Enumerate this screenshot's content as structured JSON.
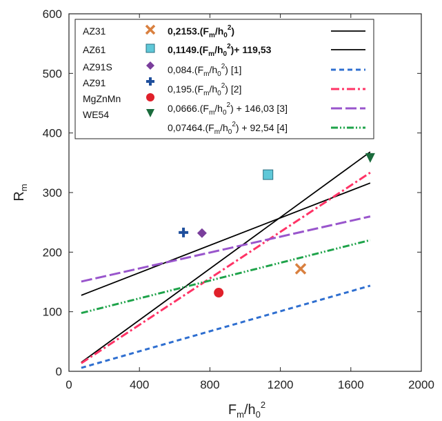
{
  "chart_data": {
    "type": "scatter",
    "xlim": [
      0,
      2000
    ],
    "ylim": [
      0,
      600
    ],
    "x_ticks": [
      "0",
      "400",
      "800",
      "1200",
      "1600",
      "2000"
    ],
    "y_ticks": [
      "0",
      "100",
      "200",
      "300",
      "400",
      "500",
      "600"
    ],
    "xlabel": {
      "main": "F",
      "sub1": "m",
      "mid": "/h",
      "sub2": "0",
      "sup": "2"
    },
    "ylabel": {
      "main": "R",
      "sub": "m"
    },
    "grid": false,
    "legend_position": "top-left",
    "points": [
      {
        "name": "AZ31",
        "x": 1315,
        "y": 172,
        "marker": "x",
        "color": "#d9803f"
      },
      {
        "name": "AZ61",
        "x": 1130,
        "y": 330,
        "marker": "square",
        "color": "#5fc8d8"
      },
      {
        "name": "AZ91S",
        "x": 755,
        "y": 232,
        "marker": "diamond",
        "color": "#7a3e9c"
      },
      {
        "name": "AZ91",
        "x": 650,
        "y": 233,
        "marker": "plus",
        "color": "#1f4f9c"
      },
      {
        "name": "MgZnMn",
        "x": 850,
        "y": 132,
        "marker": "circle",
        "color": "#e0202a"
      },
      {
        "name": "WE54",
        "x": 1710,
        "y": 358,
        "marker": "triangle-down",
        "color": "#1a6b3c"
      }
    ],
    "lines": [
      {
        "formula": "0,2153.(Fm/h0²)",
        "text_pre": "0,2153.(F",
        "text_post": "",
        "bold": true,
        "coef": 0.2153,
        "intercept": 0,
        "x": [
          70,
          1710
        ],
        "color": "#000000",
        "dash": "solid"
      },
      {
        "formula": "0,1149.(Fm/h0²)+ 119,53",
        "text_pre": "0,1149.(F",
        "text_post": "+ 119,53",
        "bold": true,
        "coef": 0.1149,
        "intercept": 119.53,
        "x": [
          70,
          1710
        ],
        "color": "#000000",
        "dash": "solid"
      },
      {
        "formula": "0,084.(Fm/h0²) [1]",
        "text_pre": "0,084.(F",
        "text_post": " [1]",
        "bold": false,
        "coef": 0.084,
        "intercept": 0,
        "x": [
          70,
          1710
        ],
        "color": "#2f6fd0",
        "dash": "dash"
      },
      {
        "formula": "0,195.(Fm/h0²) [2]",
        "text_pre": "0,195.(F",
        "text_post": " [2]",
        "bold": false,
        "coef": 0.195,
        "intercept": 0,
        "x": [
          70,
          1710
        ],
        "color": "#ff3366",
        "dash": "dashdot"
      },
      {
        "formula": "0,0666.(Fm/h0²) + 146,03 [3]",
        "text_pre": "0,0666.(F",
        "text_post": " + 146,03 [3]",
        "bold": false,
        "coef": 0.0666,
        "intercept": 146.03,
        "x": [
          70,
          1710
        ],
        "color": "#9955cc",
        "dash": "longdash"
      },
      {
        "formula": "0,07464.(Fm/h0²) + 92,54 [4]",
        "text_pre": "0,07464.(F",
        "text_post": " + 92,54 [4]",
        "bold": false,
        "coef": 0.07464,
        "intercept": 92.54,
        "x": [
          70,
          1710
        ],
        "color": "#1ea34a",
        "dash": "dashdotdot"
      }
    ]
  }
}
